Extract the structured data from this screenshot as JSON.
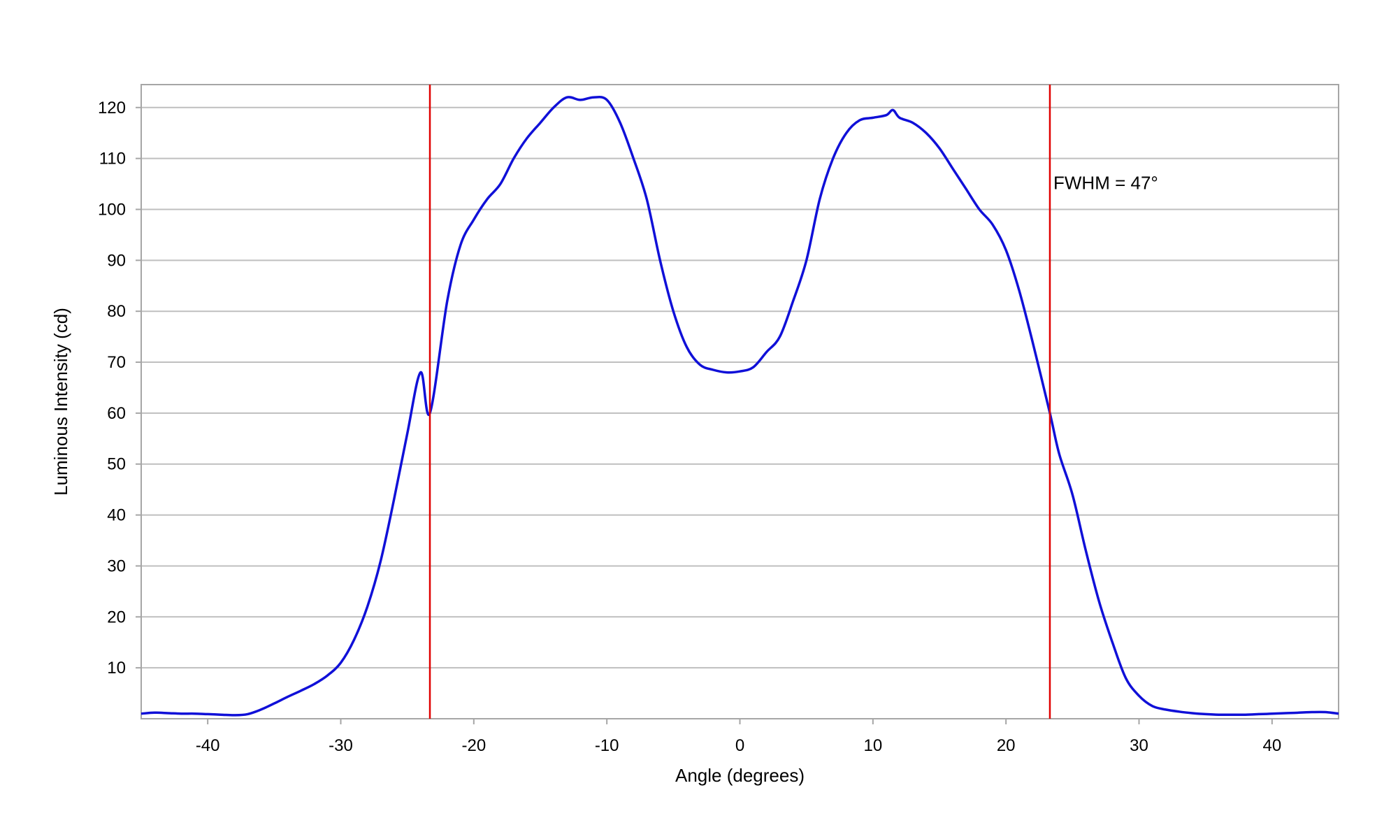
{
  "chart_data": {
    "type": "line",
    "title": "",
    "xlabel": "Angle (degrees)",
    "ylabel": "Luminous Intensity (cd)",
    "xlim": [
      -45,
      45
    ],
    "ylim": [
      0,
      124.5
    ],
    "xticks": [
      -40,
      -30,
      -20,
      -10,
      0,
      10,
      20,
      30,
      40
    ],
    "yticks": [
      10,
      20,
      30,
      40,
      50,
      60,
      70,
      80,
      90,
      100,
      110,
      120
    ],
    "grid": "horizontal",
    "series": [
      {
        "color": "#1010d8",
        "x": [
          -45,
          -44,
          -43,
          -42,
          -41,
          -40,
          -39,
          -38,
          -37,
          -36,
          -35,
          -34,
          -33,
          -32,
          -31,
          -30,
          -29,
          -28,
          -27,
          -26,
          -25,
          -24,
          -23.3,
          -22,
          -21,
          -20,
          -19,
          -18,
          -17,
          -16,
          -15,
          -14,
          -13,
          -12,
          -11,
          -10,
          -9,
          -8,
          -7,
          -6,
          -5,
          -4,
          -3,
          -2,
          -1,
          0,
          1,
          2,
          3,
          4,
          5,
          6,
          7,
          8,
          9,
          10,
          11,
          11.5,
          12,
          13,
          14,
          15,
          16,
          17,
          18,
          19,
          20,
          21,
          22,
          23.3,
          24,
          25,
          26,
          27,
          28,
          29,
          30,
          31,
          32,
          33,
          34,
          35,
          36,
          37,
          38,
          39,
          40,
          41,
          42,
          43,
          44,
          45
        ],
        "y": [
          1,
          1.2,
          1.1,
          1,
          1,
          0.9,
          0.8,
          0.7,
          0.9,
          1.8,
          3,
          4.3,
          5.5,
          6.8,
          8.5,
          11,
          15.5,
          22,
          31,
          43,
          56,
          68,
          60,
          82,
          93,
          98,
          102,
          105,
          110,
          114,
          117,
          120,
          122,
          121.5,
          122,
          121.5,
          117,
          110,
          102,
          90,
          80,
          73,
          69.5,
          68.5,
          68,
          68.2,
          69,
          72,
          75,
          82,
          90,
          102,
          110,
          115,
          117.5,
          118,
          118.5,
          119.5,
          118,
          117,
          115,
          112,
          108,
          104,
          100,
          97,
          92,
          84,
          74,
          60,
          52,
          44,
          33,
          23,
          15,
          8,
          4.5,
          2.5,
          1.8,
          1.4,
          1.1,
          0.9,
          0.8,
          0.8,
          0.8,
          0.9,
          1,
          1.1,
          1.2,
          1.3,
          1.3,
          1
        ]
      }
    ],
    "markers": [
      {
        "x": -23.3,
        "color": "#e00000"
      },
      {
        "x": 23.3,
        "color": "#e00000"
      }
    ],
    "annotations": [
      {
        "text": "FWHM = 47°",
        "x": 27.5,
        "y": 104
      }
    ]
  }
}
